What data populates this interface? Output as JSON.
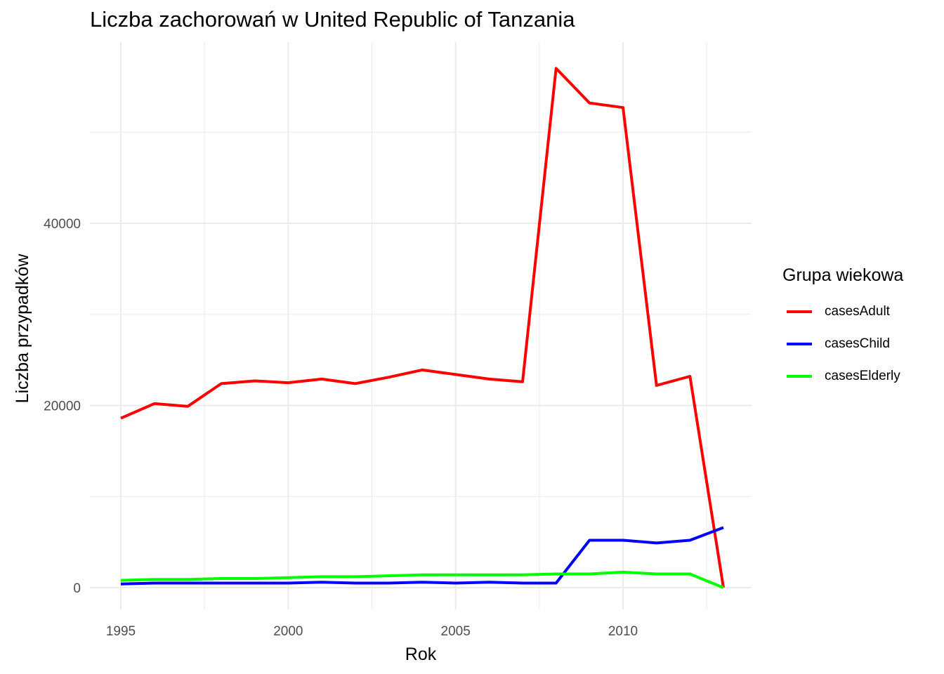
{
  "chart_data": {
    "type": "line",
    "title": "Liczba zachorowań w United Republic of Tanzania",
    "xlabel": "Rok",
    "ylabel": "Liczba przypadków",
    "legend_title": "Grupa wiekowa",
    "legend_position": "right",
    "grid": true,
    "xlim": [
      1995,
      2013
    ],
    "ylim": [
      0,
      57000
    ],
    "x_ticks": [
      1995,
      2000,
      2005,
      2010
    ],
    "y_ticks": [
      0,
      20000,
      40000
    ],
    "x": [
      1995,
      1996,
      1997,
      1998,
      1999,
      2000,
      2001,
      2002,
      2003,
      2004,
      2005,
      2006,
      2007,
      2008,
      2009,
      2010,
      2011,
      2012,
      2013
    ],
    "series": [
      {
        "name": "casesAdult",
        "color": "#ff0000",
        "values": [
          18600,
          20200,
          19900,
          22400,
          22700,
          22500,
          22900,
          22400,
          23100,
          23900,
          23400,
          22900,
          22600,
          57000,
          53200,
          52700,
          22200,
          23200,
          0
        ]
      },
      {
        "name": "casesChild",
        "color": "#0000ff",
        "values": [
          400,
          500,
          500,
          500,
          500,
          500,
          600,
          500,
          500,
          600,
          500,
          600,
          500,
          500,
          5200,
          5200,
          4900,
          5200,
          6600
        ]
      },
      {
        "name": "casesElderly",
        "color": "#00ff00",
        "values": [
          800,
          900,
          900,
          1000,
          1000,
          1100,
          1200,
          1200,
          1300,
          1400,
          1400,
          1400,
          1400,
          1500,
          1500,
          1700,
          1500,
          1500,
          0
        ]
      }
    ]
  }
}
